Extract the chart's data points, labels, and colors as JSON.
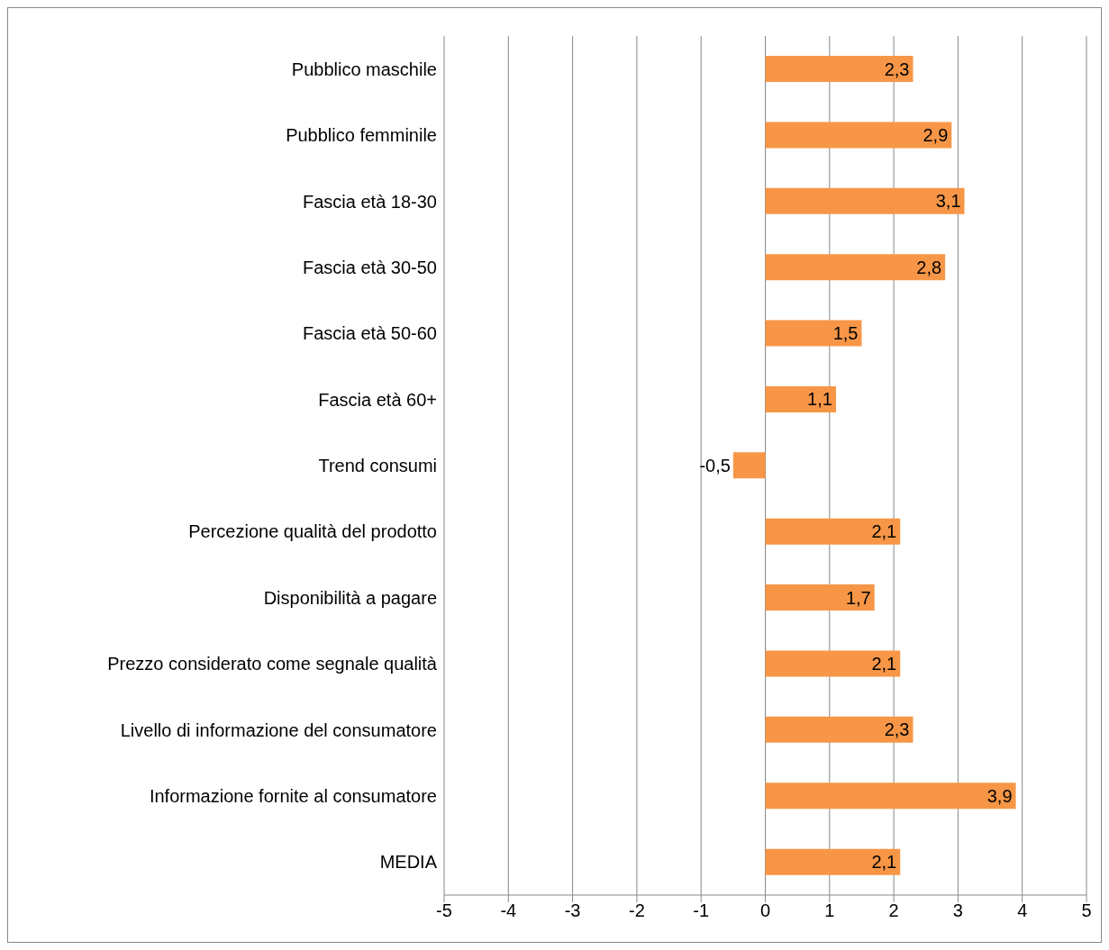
{
  "chart_data": {
    "type": "bar",
    "orientation": "horizontal",
    "categories": [
      "Pubblico maschile",
      "Pubblico femminile",
      "Fascia età 18-30",
      "Fascia età 30-50",
      "Fascia età 50-60",
      "Fascia età 60+",
      "Trend consumi",
      "Percezione qualità del prodotto",
      "Disponibilità a pagare",
      "Prezzo considerato come segnale qualità",
      "Livello di informazione del consumatore",
      "Informazione fornite al consumatore",
      "MEDIA"
    ],
    "values": [
      2.3,
      2.9,
      3.1,
      2.8,
      1.5,
      1.1,
      -0.5,
      2.1,
      1.7,
      2.1,
      2.3,
      3.9,
      2.1
    ],
    "value_labels": [
      "2,3",
      "2,9",
      "3,1",
      "2,8",
      "1,5",
      "1,1",
      "-0,5",
      "2,1",
      "1,7",
      "2,1",
      "2,3",
      "3,9",
      "2,1"
    ],
    "color": "#f79646",
    "xlim": [
      -5,
      5
    ],
    "xticks": [
      -5,
      -4,
      -3,
      -2,
      -1,
      0,
      1,
      2,
      3,
      4,
      5
    ],
    "grid": "x",
    "legend": false
  }
}
